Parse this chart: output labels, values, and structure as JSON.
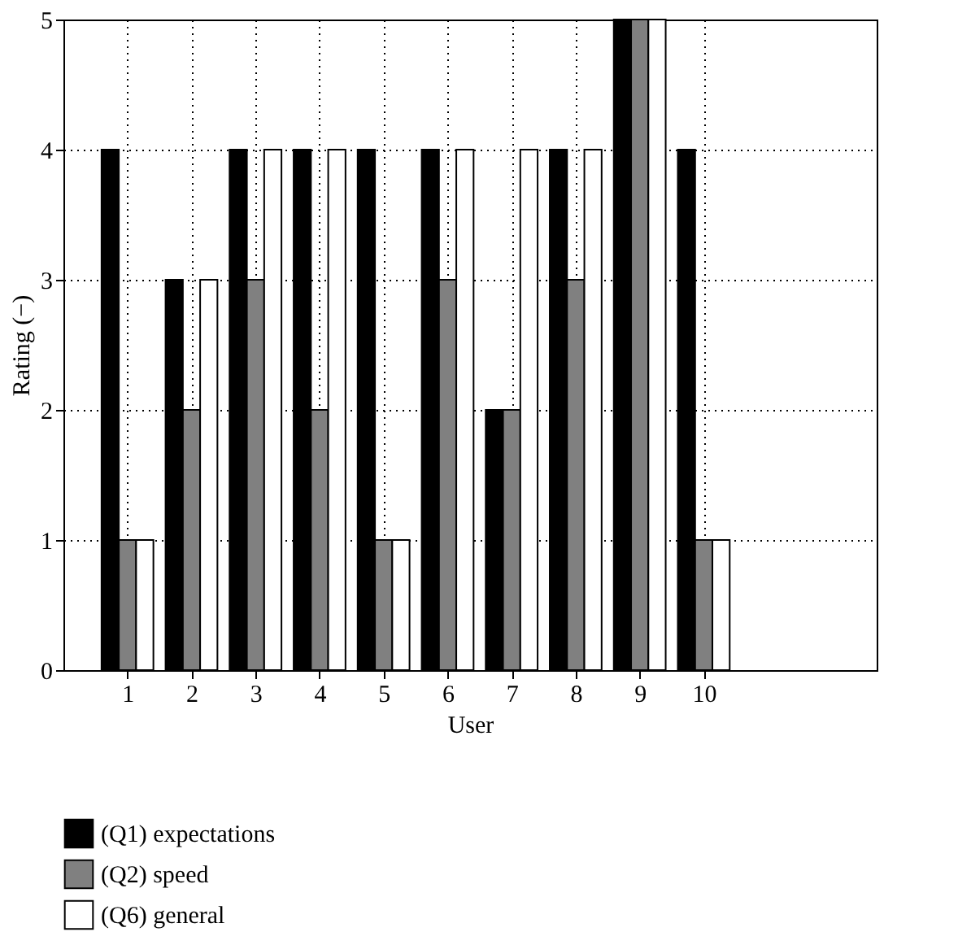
{
  "chart_data": {
    "type": "bar",
    "xlabel": "User",
    "ylabel": "Rating (−)",
    "x": [
      1,
      2,
      3,
      4,
      5,
      6,
      7,
      8,
      9,
      10
    ],
    "xlim": [
      0,
      12.7
    ],
    "xticks": [
      1,
      2,
      3,
      4,
      5,
      6,
      7,
      8,
      9,
      10
    ],
    "ylim": [
      0,
      5
    ],
    "yticks": [
      0,
      1,
      2,
      3,
      4,
      5
    ],
    "grid": true,
    "legend": "bottom",
    "series": [
      {
        "name": "(Q1) expectations",
        "color": "#000000",
        "values": [
          4,
          3,
          4,
          4,
          4,
          4,
          2,
          4,
          5,
          4
        ]
      },
      {
        "name": "(Q2) speed",
        "color": "#808080",
        "values": [
          1,
          2,
          3,
          2,
          1,
          3,
          2,
          3,
          5,
          1
        ]
      },
      {
        "name": "(Q6) general",
        "color": "#ffffff",
        "values": [
          1,
          3,
          4,
          4,
          1,
          4,
          4,
          4,
          5,
          1
        ]
      }
    ]
  }
}
